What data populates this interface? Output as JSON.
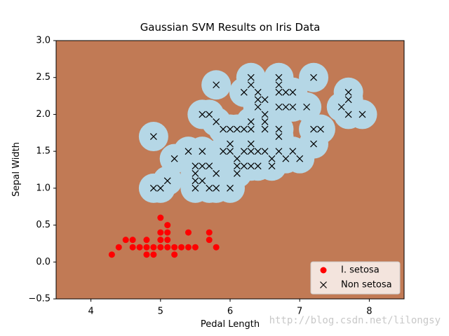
{
  "chart_data": {
    "type": "scatter",
    "title": "Gaussian SVM Results on Iris Data",
    "x_label": "Pedal Length",
    "y_label": "Sepal Width",
    "xlim": [
      3.5,
      8.5
    ],
    "xticks": [
      4,
      5,
      6,
      7,
      8
    ],
    "ylim": [
      -0.5,
      3.0
    ],
    "yticks": [
      {
        "value": -0.5,
        "label": "−0.5"
      },
      {
        "value": 0,
        "label": "0.0"
      },
      {
        "value": 0.5,
        "label": "0.5"
      },
      {
        "value": 1,
        "label": "1.0"
      },
      {
        "value": 1.5,
        "label": "1.5"
      },
      {
        "value": 2,
        "label": "2.0"
      },
      {
        "value": 2.5,
        "label": "2.5"
      },
      {
        "value": 3,
        "label": "3.0"
      }
    ],
    "background_color": "#c17a55",
    "region_color": "#b5d7e6",
    "legend": "lower right",
    "watermark": "http://blog.csdn.net/lilongsy",
    "series": [
      {
        "name": "I. setosa",
        "color": "#ff0000",
        "marker": "o",
        "x": [
          4.3,
          4.4,
          4.5,
          4.6,
          4.6,
          4.7,
          4.8,
          4.8,
          4.8,
          4.9,
          4.9,
          5.0,
          5.0,
          5.0,
          5.0,
          5.1,
          5.1,
          5.1,
          5.1,
          5.2,
          5.2,
          5.3,
          5.4,
          5.4,
          5.5,
          5.7,
          5.7,
          5.8
        ],
        "values": [
          0.1,
          0.2,
          0.3,
          0.3,
          0.2,
          0.2,
          0.3,
          0.2,
          0.1,
          0.2,
          0.1,
          0.6,
          0.4,
          0.3,
          0.2,
          0.5,
          0.4,
          0.3,
          0.2,
          0.2,
          0.1,
          0.2,
          0.4,
          0.2,
          0.2,
          0.4,
          0.3,
          0.2
        ]
      },
      {
        "name": "Non setosa",
        "color": "#000000",
        "marker": "x",
        "x": [
          6.3,
          6.7,
          7.2,
          5.8,
          6.3,
          6.7,
          6.2,
          6.4,
          6.7,
          6.8,
          6.9,
          7.7,
          6.4,
          6.5,
          7.7,
          6.4,
          6.7,
          6.8,
          6.9,
          7.1,
          7.6,
          5.6,
          5.7,
          6.5,
          7.7,
          7.9,
          5.8,
          6.3,
          6.5,
          5.9,
          6.0,
          6.1,
          6.2,
          6.3,
          6.5,
          6.7,
          7.2,
          7.3,
          4.9,
          6.7,
          6.0,
          6.3,
          7.2,
          5.4,
          5.6,
          5.9,
          6.0,
          6.2,
          6.3,
          6.4,
          6.5,
          6.7,
          6.9,
          5.2,
          6.1,
          6.6,
          6.8,
          7.0,
          5.5,
          5.6,
          5.7,
          6.1,
          6.2,
          6.3,
          6.4,
          6.6,
          5.5,
          5.8,
          6.1,
          5.1,
          5.5,
          5.6,
          4.9,
          5.0,
          5.5,
          5.7,
          5.8,
          6.0
        ],
        "values": [
          2.5,
          2.5,
          2.5,
          2.4,
          2.4,
          2.4,
          2.3,
          2.3,
          2.3,
          2.3,
          2.3,
          2.3,
          2.2,
          2.2,
          2.2,
          2.1,
          2.1,
          2.1,
          2.1,
          2.1,
          2.1,
          2.0,
          2.0,
          2.0,
          2.0,
          2.0,
          1.9,
          1.9,
          1.9,
          1.8,
          1.8,
          1.8,
          1.8,
          1.8,
          1.8,
          1.8,
          1.8,
          1.8,
          1.7,
          1.7,
          1.6,
          1.6,
          1.6,
          1.5,
          1.5,
          1.5,
          1.5,
          1.5,
          1.5,
          1.5,
          1.5,
          1.5,
          1.5,
          1.4,
          1.4,
          1.4,
          1.4,
          1.4,
          1.3,
          1.3,
          1.3,
          1.3,
          1.3,
          1.3,
          1.3,
          1.3,
          1.2,
          1.2,
          1.2,
          1.1,
          1.1,
          1.1,
          1.0,
          1.0,
          1.0,
          1.0,
          1.0,
          1.0
        ]
      }
    ]
  }
}
